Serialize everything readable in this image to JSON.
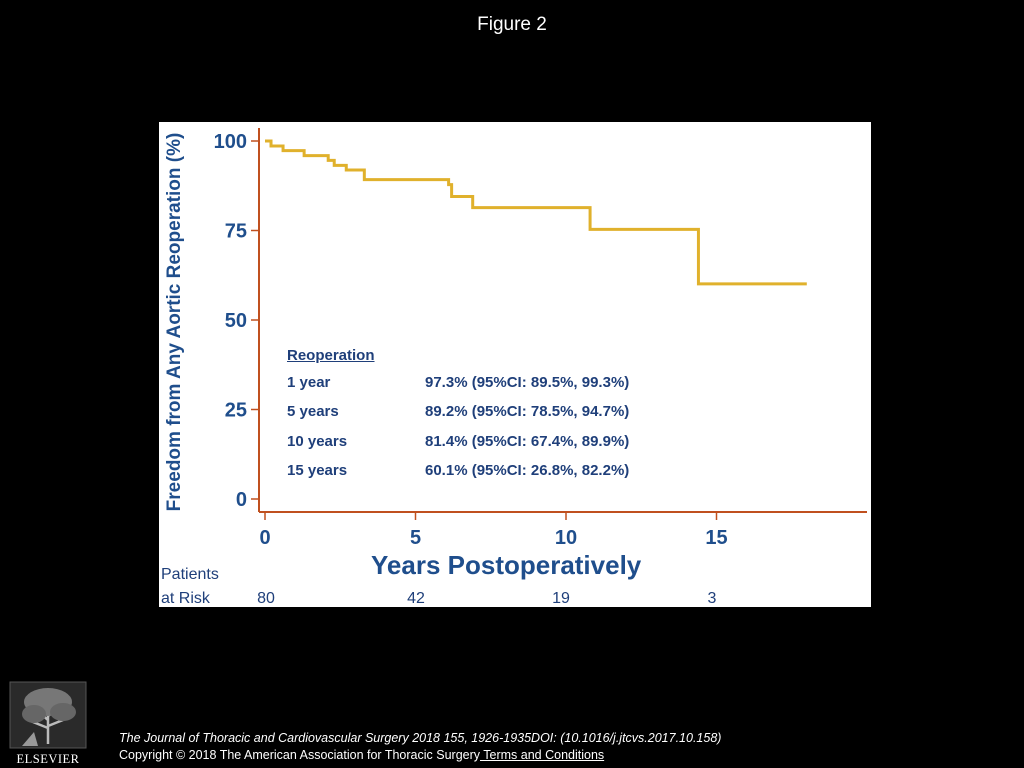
{
  "figure": {
    "title": "Figure 2"
  },
  "chart_data": {
    "type": "line",
    "step": true,
    "ylabel": "Freedom from Any Aortic Reoperation (%)",
    "xlabel": "Years Postoperatively",
    "xlim": [
      0,
      20
    ],
    "ylim": [
      0,
      100
    ],
    "x_ticks": [
      "0",
      "5",
      "10",
      "15"
    ],
    "y_ticks": [
      "100",
      "75",
      "50",
      "25",
      "0"
    ],
    "line_color": "#e0b12c",
    "axis_color": "#c0501f",
    "series": [
      {
        "x": [
          0,
          0.2,
          0.6,
          1.3,
          2.1,
          2.3,
          2.7,
          3.3,
          6.0,
          6.1,
          6.2,
          6.9,
          10.8,
          14.4,
          18.0
        ],
        "y": [
          100,
          98.6,
          97.3,
          95.9,
          94.6,
          93.2,
          91.9,
          89.2,
          89.2,
          87.8,
          84.5,
          81.4,
          75.3,
          60.1,
          60.1
        ]
      }
    ],
    "legend_table": {
      "header": "Reoperation",
      "rows": [
        {
          "label": "1 year",
          "value": "97.3% (95%CI:  89.5%, 99.3%)"
        },
        {
          "label": "5 years",
          "value": "89.2% (95%CI:  78.5%, 94.7%)"
        },
        {
          "label": "10 years",
          "value": "81.4% (95%CI:  67.4%, 89.9%)"
        },
        {
          "label": "15 years",
          "value": "60.1% (95%CI:  26.8%, 82.2%)"
        }
      ]
    },
    "at_risk": {
      "label_line1": "Patients",
      "label_line2": "at Risk",
      "times": [
        0,
        5,
        10,
        15
      ],
      "values": [
        "80",
        "42",
        "19",
        "3"
      ]
    }
  },
  "footer": {
    "logo_text": "ELSEVIER",
    "citation": "The Journal of Thoracic and Cardiovascular Surgery 2018 155, 1926-1935DOI: (10.1016/j.jtcvs.2017.10.158)",
    "copyright": "Copyright © 2018 The American Association for Thoracic Surgery",
    "terms_link": " Terms and Conditions"
  }
}
